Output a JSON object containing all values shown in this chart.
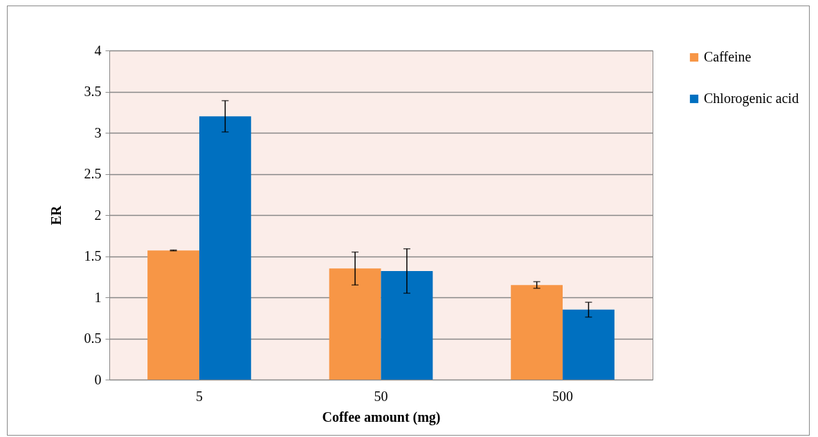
{
  "chart_data": {
    "type": "bar",
    "xlabel": "Coffee amount (mg)",
    "ylabel": "ER",
    "categories": [
      "5",
      "50",
      "500"
    ],
    "series": [
      {
        "name": "Caffeine",
        "color": "#f79646",
        "values": [
          1.57,
          1.35,
          1.15
        ],
        "errors": [
          0.005,
          0.2,
          0.04
        ]
      },
      {
        "name": "Chlorogenic acid",
        "color": "#0070c0",
        "values": [
          3.2,
          1.32,
          0.85
        ],
        "errors": [
          0.19,
          0.27,
          0.09
        ]
      }
    ],
    "ylim": [
      0,
      4
    ],
    "yticks": [
      0,
      0.5,
      1,
      1.5,
      2,
      2.5,
      3,
      3.5,
      4
    ],
    "grid": "y",
    "legend": "right"
  }
}
